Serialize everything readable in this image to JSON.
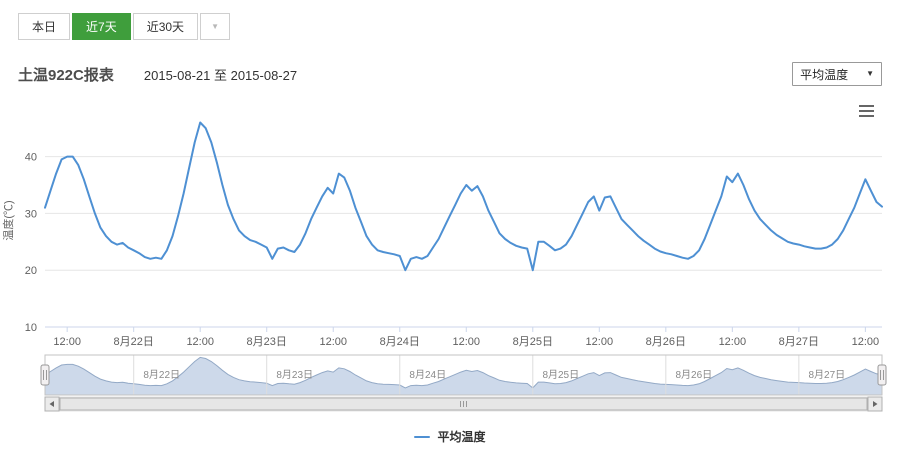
{
  "tabs": {
    "today": "本日",
    "last7": "近7天",
    "last30": "近30天",
    "active_bg": "#3f9e3c"
  },
  "icons": {
    "dropdown_caret": "▼"
  },
  "header": {
    "title": "土温922C报表",
    "date_range": "2015-08-21 至 2015-08-27",
    "metric_select": "平均温度"
  },
  "legend": {
    "items": [
      {
        "label": "平均温度",
        "color": "#4e90d3"
      }
    ]
  },
  "chart_data": {
    "type": "line",
    "title": "",
    "ylabel": "温度(℃)",
    "y_ticks": [
      40,
      30,
      20,
      10
    ],
    "ylim": [
      10,
      47.5
    ],
    "grid": true,
    "legend_position": "bottom-center",
    "x_unit": "hours",
    "x_range_hours": [
      0,
      151
    ],
    "x_tick_hours": [
      4,
      16,
      28,
      40,
      52,
      64,
      76,
      88,
      100,
      112,
      124,
      136,
      148
    ],
    "x_tick_labels": [
      "12:00",
      "8月22日",
      "12:00",
      "8月23日",
      "12:00",
      "8月24日",
      "12:00",
      "8月25日",
      "12:00",
      "8月26日",
      "12:00",
      "8月27日",
      "12:00"
    ],
    "series": [
      {
        "name": "平均温度",
        "color": "#4e90d3",
        "start_hour": 0,
        "step_hours": 1,
        "values": [
          31,
          34,
          37,
          39.5,
          40,
          40,
          38.5,
          36,
          33,
          30,
          27.5,
          26,
          25,
          24.5,
          24.8,
          24,
          23.5,
          23,
          22.3,
          22,
          22.2,
          22,
          23.5,
          26,
          29.5,
          33.5,
          38,
          42.5,
          46,
          45,
          42.5,
          39,
          35,
          31.5,
          29,
          27,
          26,
          25.3,
          25,
          24.5,
          24,
          22,
          23.8,
          24,
          23.5,
          23.2,
          24.5,
          26.5,
          29,
          31,
          33,
          34.5,
          33.5,
          37,
          36.3,
          34,
          31,
          28.5,
          26,
          24.5,
          23.5,
          23.2,
          23,
          22.8,
          22.5,
          20,
          22,
          22.3,
          22,
          22.5,
          24,
          25.5,
          27.5,
          29.5,
          31.5,
          33.5,
          35,
          34,
          34.8,
          33,
          30.5,
          28.5,
          26.5,
          25.5,
          24.8,
          24.3,
          24,
          23.8,
          20,
          25,
          25,
          24.3,
          23.5,
          23.8,
          24.5,
          26,
          28,
          30,
          32,
          33,
          30.5,
          32.8,
          33,
          31,
          29,
          28,
          27,
          26,
          25.2,
          24.5,
          23.8,
          23.3,
          23,
          22.8,
          22.5,
          22.2,
          22,
          22.5,
          23.5,
          25.5,
          28,
          30.5,
          33,
          36.5,
          35.5,
          37,
          35,
          32.5,
          30.5,
          29,
          28,
          27,
          26.2,
          25.6,
          25,
          24.7,
          24.5,
          24.2,
          24,
          23.8,
          23.8,
          24,
          24.5,
          25.5,
          27,
          29,
          31,
          33.5,
          36,
          34,
          32,
          31.2
        ]
      }
    ],
    "navigator": {
      "ylim": [
        14,
        48
      ],
      "fill": "#cdd9ea",
      "line": "#93a9c6",
      "label_color": "#8a8a8a",
      "day_hours": [
        16,
        40,
        64,
        88,
        112,
        136
      ],
      "day_labels": [
        "8月22日",
        "8月23日",
        "8月24日",
        "8月25日",
        "8月26日",
        "8月27日"
      ]
    }
  }
}
